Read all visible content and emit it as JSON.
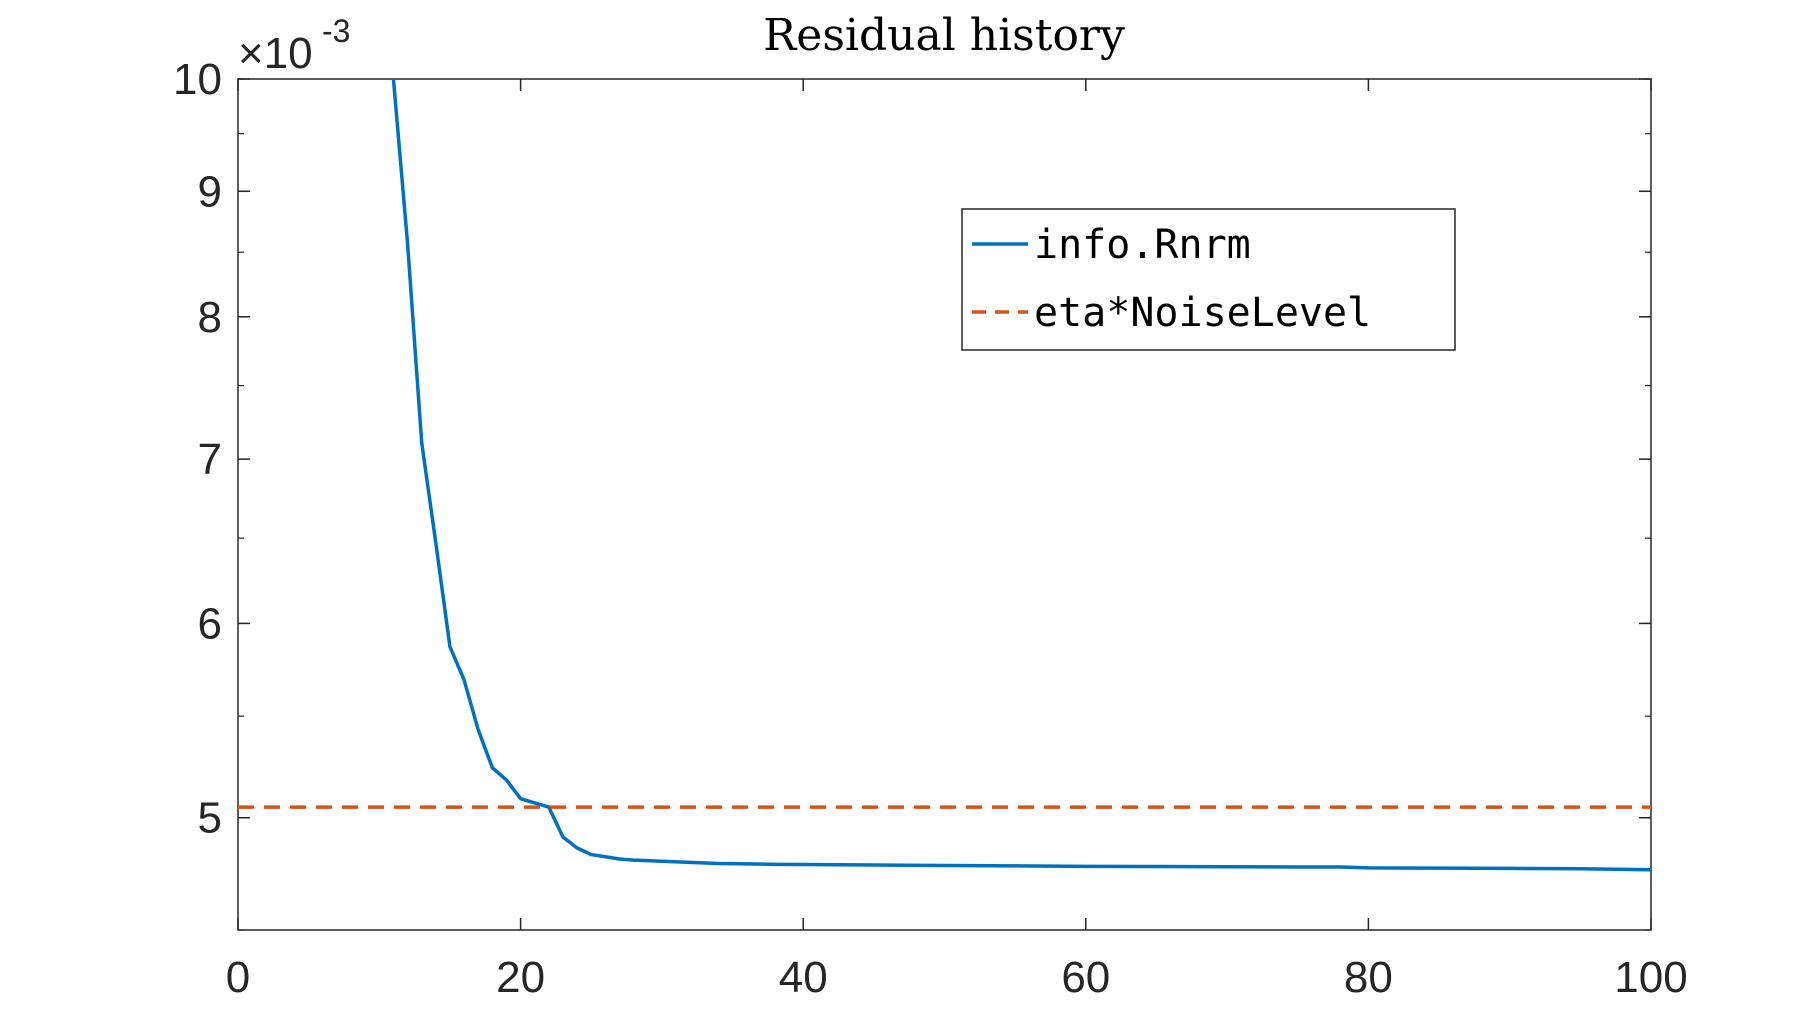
{
  "chart_data": {
    "type": "line",
    "title": "Residual history",
    "xlabel": "",
    "ylabel": "",
    "y_scale": "log",
    "xlim": [
      0,
      100
    ],
    "ylim": [
      0.0045,
      0.01
    ],
    "x_ticks": [
      0,
      20,
      40,
      60,
      80,
      100
    ],
    "x_tick_labels": [
      "0",
      "20",
      "40",
      "60",
      "80",
      "100"
    ],
    "y_ticks": [
      0.005,
      0.006,
      0.007,
      0.008,
      0.009,
      0.01
    ],
    "y_tick_labels": [
      "5",
      "6",
      "7",
      "8",
      "9",
      "10"
    ],
    "y_multiplier": "×10",
    "y_multiplier_exp": "-3",
    "grid": false,
    "legend_placement": "top-right",
    "series": [
      {
        "name": "info.Rnrm",
        "style": "solid",
        "color": "#0072BD",
        "x": [
          10,
          11,
          12,
          13,
          14,
          15,
          16,
          17,
          18,
          19,
          20,
          21,
          22,
          23,
          24,
          25,
          26,
          27,
          28,
          30,
          32,
          34,
          36,
          38,
          40,
          45,
          50,
          55,
          60,
          65,
          70,
          75,
          78,
          80,
          85,
          90,
          95,
          100
        ],
        "y": [
          0.0127,
          0.01,
          0.00857,
          0.00711,
          0.00647,
          0.00587,
          0.00569,
          0.00543,
          0.00524,
          0.00518,
          0.00509,
          0.00507,
          0.00505,
          0.00491,
          0.00486,
          0.00483,
          0.00482,
          0.00481,
          0.004805,
          0.0048,
          0.004795,
          0.00479,
          0.004788,
          0.004786,
          0.004785,
          0.004783,
          0.004781,
          0.004779,
          0.004777,
          0.004776,
          0.004775,
          0.004774,
          0.004774,
          0.00477,
          0.004769,
          0.004768,
          0.004766,
          0.004762
        ]
      },
      {
        "name": "eta*NoiseLevel",
        "style": "dashed",
        "color": "#D95319",
        "x": [
          0,
          100
        ],
        "y": [
          0.00505,
          0.00505
        ]
      }
    ]
  }
}
